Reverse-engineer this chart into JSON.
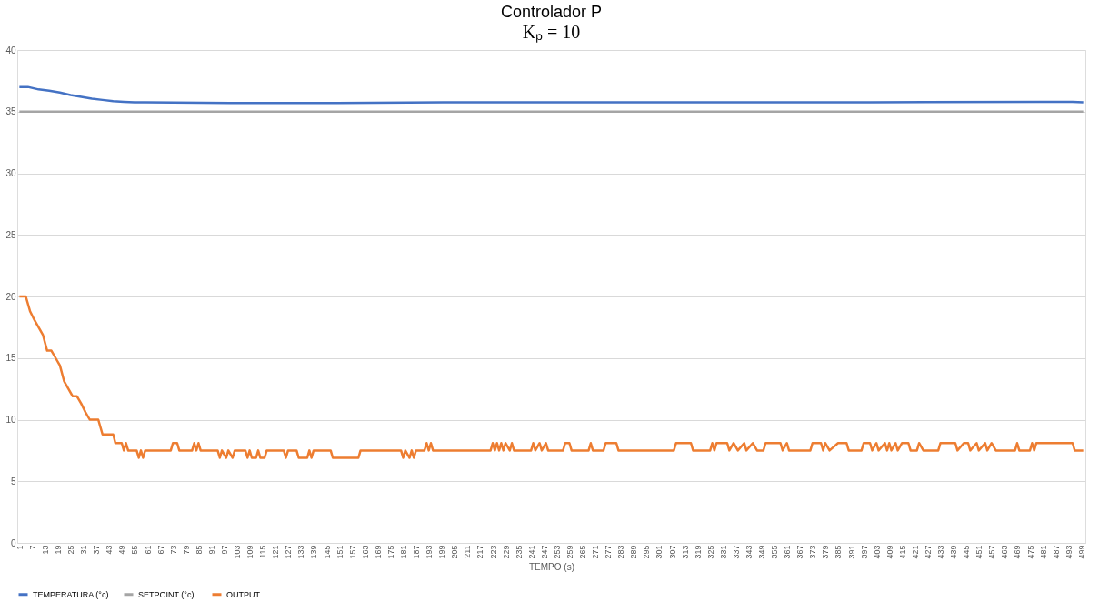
{
  "chart_data": {
    "type": "line",
    "title": "Controlador P",
    "subtitle": "Kₚ = 10",
    "xlabel": "TEMPO (s)",
    "xlim": [
      0,
      501
    ],
    "ylim": [
      0,
      40
    ],
    "yticks": [
      0,
      5,
      10,
      15,
      20,
      25,
      30,
      35,
      40
    ],
    "xticks": [
      1,
      7,
      13,
      19,
      25,
      31,
      37,
      43,
      49,
      55,
      61,
      67,
      73,
      79,
      85,
      91,
      97,
      103,
      109,
      115,
      121,
      127,
      133,
      139,
      145,
      151,
      157,
      163,
      169,
      175,
      181,
      187,
      193,
      199,
      205,
      211,
      217,
      223,
      229,
      235,
      241,
      247,
      253,
      259,
      265,
      271,
      277,
      283,
      289,
      295,
      301,
      307,
      313,
      319,
      325,
      331,
      337,
      343,
      349,
      355,
      361,
      367,
      373,
      379,
      385,
      391,
      397,
      403,
      409,
      415,
      421,
      427,
      433,
      439,
      445,
      451,
      457,
      463,
      469,
      475,
      481,
      487,
      493,
      499
    ],
    "grid": "y",
    "legend": "bottom",
    "line_style": "solid",
    "marker": "none",
    "series": [
      {
        "name": "TEMPERATURA (°c)",
        "color": "#4472c4",
        "x": [
          1,
          5,
          10,
          15,
          20,
          25,
          30,
          35,
          40,
          45,
          50,
          55,
          60,
          100,
          150,
          200,
          300,
          400,
          480,
          495,
          500
        ],
        "values": [
          37,
          37,
          36.8,
          36.7,
          36.55,
          36.35,
          36.2,
          36.05,
          35.95,
          35.85,
          35.8,
          35.75,
          35.75,
          35.7,
          35.7,
          35.75,
          35.75,
          35.75,
          35.8,
          35.8,
          35.75
        ]
      },
      {
        "name": "SETPOINT  (°c)",
        "color": "#a5a5a5",
        "x": [
          1,
          500
        ],
        "values": [
          35,
          35
        ]
      },
      {
        "name": "OUTPUT",
        "color": "#ed7d31",
        "x": [
          1,
          4,
          6,
          8,
          10,
          12,
          14,
          16,
          18,
          20,
          22,
          24,
          26,
          28,
          30,
          32,
          34,
          38,
          40,
          45,
          46,
          49,
          50,
          51,
          52,
          56,
          57,
          58,
          59,
          60,
          72,
          73,
          75,
          76,
          82,
          83,
          84,
          85,
          86,
          94,
          95,
          96,
          98,
          99,
          101,
          102,
          107,
          108,
          109,
          110,
          112,
          113,
          114,
          116,
          117,
          125,
          126,
          127,
          131,
          132,
          136,
          137,
          138,
          139,
          147,
          148,
          160,
          161,
          180,
          181,
          182,
          184,
          185,
          186,
          187,
          191,
          192,
          193,
          194,
          195,
          222,
          223,
          224,
          225,
          226,
          227,
          228,
          229,
          231,
          232,
          233,
          241,
          242,
          243,
          245,
          246,
          248,
          249,
          256,
          257,
          259,
          260,
          268,
          269,
          270,
          275,
          276,
          281,
          282,
          308,
          309,
          316,
          317,
          325,
          326,
          327,
          328,
          333,
          334,
          336,
          338,
          341,
          342,
          345,
          347,
          350,
          351,
          358,
          359,
          361,
          362,
          372,
          373,
          377,
          378,
          379,
          381,
          385,
          389,
          390,
          396,
          397,
          400,
          401,
          403,
          404,
          407,
          408,
          409,
          410,
          412,
          413,
          415,
          418,
          419,
          422,
          423,
          425,
          432,
          433,
          440,
          441,
          444,
          446,
          447,
          450,
          451,
          454,
          455,
          457,
          459,
          468,
          469,
          470,
          475,
          476,
          477,
          478,
          495,
          496,
          500
        ],
        "values": [
          20,
          20,
          18.8,
          18.1,
          17.5,
          16.9,
          15.6,
          15.6,
          15,
          14.4,
          13.1,
          12.5,
          11.9,
          11.9,
          11.3,
          10.6,
          10,
          10,
          8.8,
          8.8,
          8.1,
          8.1,
          7.5,
          8.1,
          7.5,
          7.5,
          6.9,
          7.5,
          6.9,
          7.5,
          7.5,
          8.1,
          8.1,
          7.5,
          7.5,
          8.1,
          7.5,
          8.1,
          7.5,
          7.5,
          6.9,
          7.5,
          6.9,
          7.5,
          6.9,
          7.5,
          7.5,
          6.9,
          7.5,
          6.9,
          6.9,
          7.5,
          6.9,
          6.9,
          7.5,
          7.5,
          6.9,
          7.5,
          7.5,
          6.9,
          6.9,
          7.5,
          6.9,
          7.5,
          7.5,
          6.9,
          6.9,
          7.5,
          7.5,
          6.9,
          7.5,
          6.9,
          7.5,
          6.9,
          7.5,
          7.5,
          8.1,
          7.5,
          8.1,
          7.5,
          7.5,
          8.1,
          7.5,
          8.1,
          7.5,
          8.1,
          7.5,
          8.1,
          7.5,
          8.1,
          7.5,
          7.5,
          8.1,
          7.5,
          8.1,
          7.5,
          8.1,
          7.5,
          7.5,
          8.1,
          8.1,
          7.5,
          7.5,
          8.1,
          7.5,
          7.5,
          8.1,
          8.1,
          7.5,
          7.5,
          8.1,
          8.1,
          7.5,
          7.5,
          8.1,
          7.5,
          8.1,
          8.1,
          7.5,
          8.1,
          7.5,
          8.1,
          7.5,
          8.1,
          7.5,
          7.5,
          8.1,
          8.1,
          7.5,
          8.1,
          7.5,
          7.5,
          8.1,
          8.1,
          7.5,
          8.1,
          7.5,
          8.1,
          8.1,
          7.5,
          7.5,
          8.1,
          8.1,
          7.5,
          8.1,
          7.5,
          8.1,
          7.5,
          8.1,
          7.5,
          8.1,
          7.5,
          8.1,
          8.1,
          7.5,
          7.5,
          8.1,
          7.5,
          7.5,
          8.1,
          8.1,
          7.5,
          8.1,
          8.1,
          7.5,
          8.1,
          7.5,
          8.1,
          7.5,
          8.1,
          7.5,
          7.5,
          8.1,
          7.5,
          7.5,
          8.1,
          7.5,
          8.1,
          8.1,
          7.5,
          7.5
        ]
      }
    ]
  }
}
